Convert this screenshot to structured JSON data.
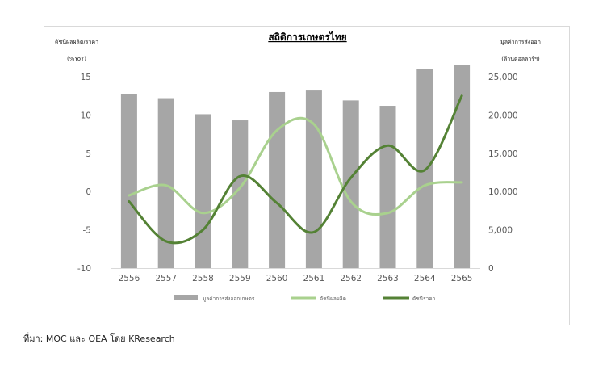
{
  "chart_data": {
    "type": "bar+line",
    "title": "สถิติการเกษตรไทย",
    "left_axis_label": [
      "ดัชนีผลผลิต/ราคา",
      "(%YoY)"
    ],
    "right_axis_label": [
      "มูลค่าการส่งออก",
      "(ล้านดอลลาร์ฯ)"
    ],
    "categories": [
      "2556",
      "2557",
      "2558",
      "2559",
      "2560",
      "2561",
      "2562",
      "2563",
      "2564",
      "2565"
    ],
    "left_ylim": [
      -10,
      15
    ],
    "left_ticks": [
      "15",
      "10",
      "5",
      "0",
      "-5",
      "-10"
    ],
    "right_ylim": [
      0,
      25000
    ],
    "right_ticks": [
      "25,000",
      "20,000",
      "15,000",
      "10,000",
      "5,000",
      "0"
    ],
    "grid": false,
    "legend_position": "bottom",
    "series": [
      {
        "name": "มูลค่าการส่งออกเกษตร",
        "type": "bar",
        "axis": "right",
        "color": "#a6a6a6",
        "values": [
          22700,
          22200,
          20100,
          19300,
          23000,
          23200,
          21900,
          21200,
          26000,
          26500
        ]
      },
      {
        "name": "ดัชนีผลผลิต",
        "type": "line",
        "axis": "left",
        "color": "#a9d18e",
        "values": [
          -0.5,
          0.8,
          -2.8,
          0.5,
          8.0,
          8.8,
          -1.3,
          -2.8,
          0.8,
          1.2
        ]
      },
      {
        "name": "ดัชนีราคา",
        "type": "line",
        "axis": "left",
        "color": "#548235",
        "values": [
          -1.3,
          -6.5,
          -5.0,
          2.0,
          -1.5,
          -5.3,
          1.8,
          6.0,
          2.8,
          12.5
        ]
      }
    ]
  },
  "source_note": "ที่มา: MOC และ OEA โดย KResearch"
}
